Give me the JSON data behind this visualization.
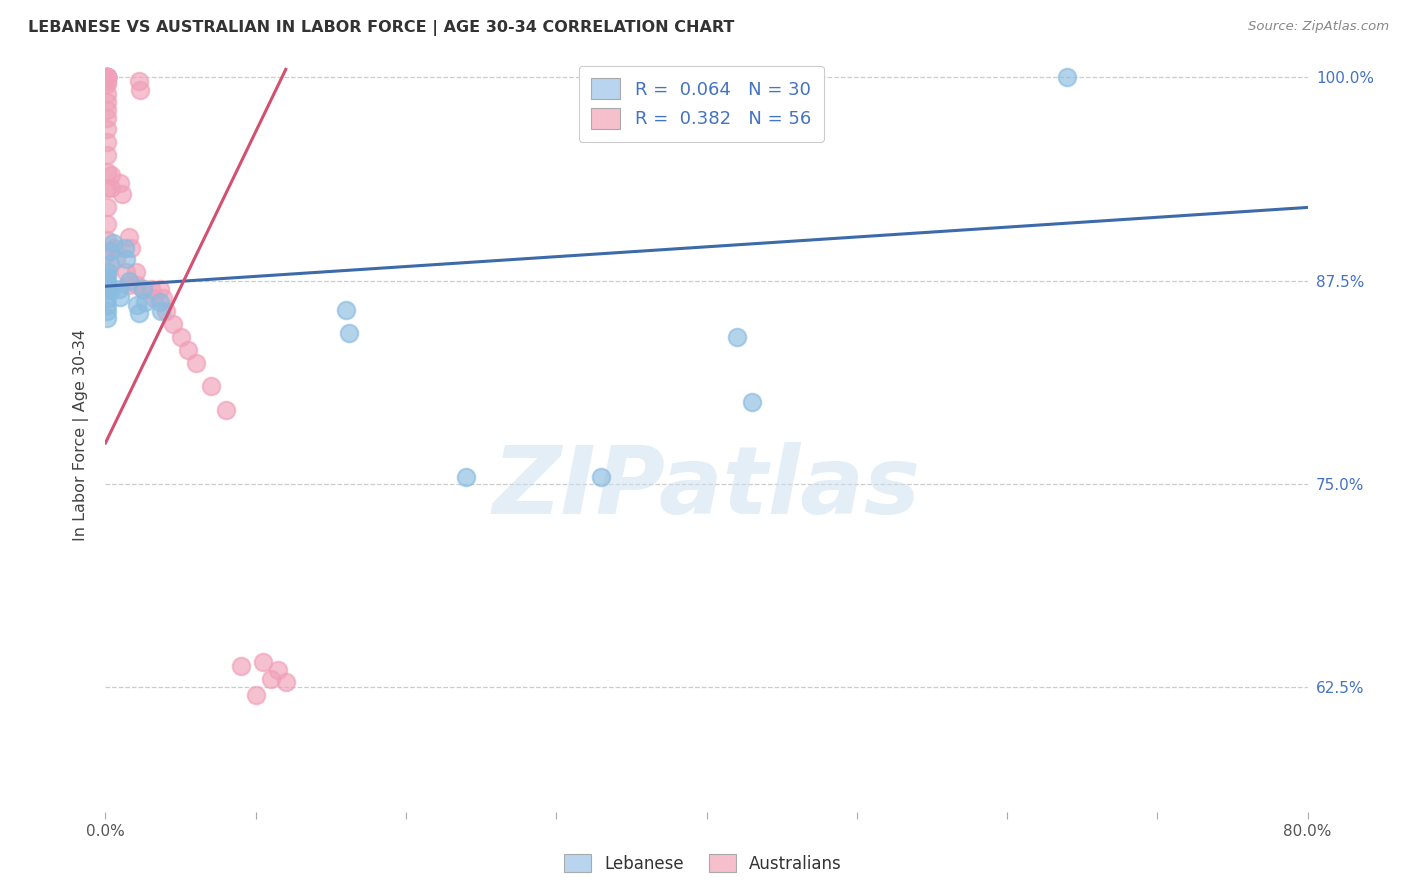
{
  "title": "LEBANESE VS AUSTRALIAN IN LABOR FORCE | AGE 30-34 CORRELATION CHART",
  "source": "Source: ZipAtlas.com",
  "ylabel": "In Labor Force | Age 30-34",
  "xlim": [
    0.0,
    0.8
  ],
  "ylim": [
    0.548,
    1.012
  ],
  "yticks": [
    0.625,
    0.75,
    0.875,
    1.0
  ],
  "ytick_labels": [
    "62.5%",
    "75.0%",
    "87.5%",
    "100.0%"
  ],
  "xticks": [
    0.0,
    0.1,
    0.2,
    0.3,
    0.4,
    0.5,
    0.6,
    0.7,
    0.8
  ],
  "xtick_labels": [
    "0.0%",
    "",
    "",
    "",
    "",
    "",
    "",
    "",
    "80.0%"
  ],
  "legend_r_blue": "R =  0.064",
  "legend_n_blue": "N = 30",
  "legend_r_pink": "R =  0.382",
  "legend_n_pink": "N = 56",
  "blue_marker_color": "#89bce0",
  "pink_marker_color": "#f0a0b8",
  "blue_line_color": "#3d6baa",
  "pink_line_color": "#d45070",
  "blue_legend_fill": "#b8d4ee",
  "pink_legend_fill": "#f5c0cc",
  "watermark_text": "ZIPatlas",
  "watermark_color": "#cce0f0",
  "bg_color": "#ffffff",
  "lebanese_x": [
    0.001,
    0.001,
    0.001,
    0.001,
    0.001,
    0.001,
    0.001,
    0.001,
    0.003,
    0.003,
    0.004,
    0.005,
    0.009,
    0.01,
    0.013,
    0.014,
    0.016,
    0.021,
    0.022,
    0.025,
    0.026,
    0.036,
    0.037,
    0.16,
    0.162,
    0.24,
    0.33,
    0.42,
    0.43,
    0.64
  ],
  "lebanese_y": [
    0.877,
    0.88,
    0.874,
    0.869,
    0.864,
    0.86,
    0.856,
    0.852,
    0.893,
    0.885,
    0.87,
    0.898,
    0.87,
    0.865,
    0.895,
    0.888,
    0.875,
    0.86,
    0.855,
    0.87,
    0.862,
    0.862,
    0.856,
    0.857,
    0.843,
    0.754,
    0.754,
    0.84,
    0.8,
    1.0
  ],
  "australian_x": [
    0.001,
    0.001,
    0.001,
    0.001,
    0.001,
    0.001,
    0.001,
    0.001,
    0.001,
    0.001,
    0.001,
    0.001,
    0.001,
    0.001,
    0.001,
    0.001,
    0.001,
    0.001,
    0.001,
    0.001,
    0.001,
    0.001,
    0.002,
    0.002,
    0.004,
    0.004,
    0.006,
    0.007,
    0.01,
    0.011,
    0.014,
    0.015,
    0.016,
    0.017,
    0.02,
    0.021,
    0.022,
    0.023,
    0.025,
    0.03,
    0.032,
    0.036,
    0.038,
    0.04,
    0.045,
    0.05,
    0.055,
    0.06,
    0.07,
    0.08,
    0.09,
    0.1,
    0.105,
    0.11,
    0.115,
    0.12
  ],
  "australian_y": [
    1.0,
    1.0,
    1.0,
    1.0,
    1.0,
    1.0,
    1.0,
    0.998,
    0.996,
    0.99,
    0.985,
    0.98,
    0.975,
    0.968,
    0.96,
    0.952,
    0.942,
    0.932,
    0.92,
    0.91,
    0.9,
    0.892,
    0.88,
    0.872,
    0.94,
    0.932,
    0.895,
    0.888,
    0.935,
    0.928,
    0.88,
    0.872,
    0.902,
    0.895,
    0.88,
    0.872,
    0.998,
    0.992,
    0.87,
    0.87,
    0.864,
    0.87,
    0.864,
    0.856,
    0.848,
    0.84,
    0.832,
    0.824,
    0.81,
    0.795,
    0.638,
    0.62,
    0.64,
    0.63,
    0.635,
    0.628
  ],
  "blue_trend_x0": 0.0,
  "blue_trend_y0": 0.8715,
  "blue_trend_x1": 0.8,
  "blue_trend_y1": 0.92,
  "pink_trend_x0": 0.0,
  "pink_trend_y0": 0.775,
  "pink_trend_x1": 0.12,
  "pink_trend_y1": 1.005
}
